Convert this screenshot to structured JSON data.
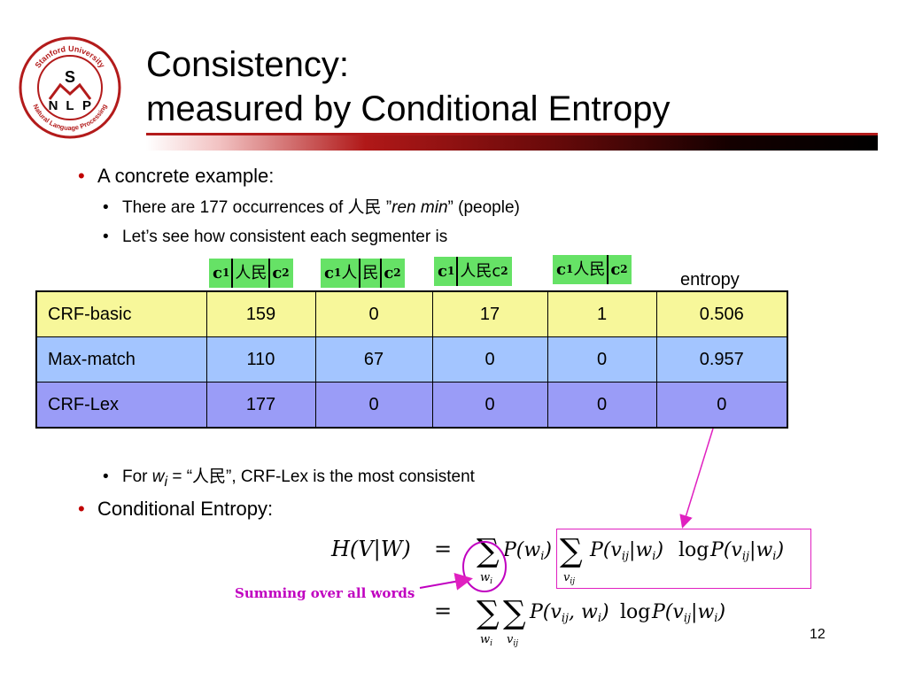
{
  "logo": {
    "ring_text_top": "Stanford University",
    "ring_text_bottom": "Natural Language Processing",
    "letter_s": "S",
    "letters_nlp": [
      "N",
      "L",
      "P"
    ]
  },
  "title": {
    "line1": "Consistency:",
    "line2": "measured by Conditional Entropy"
  },
  "bullets": {
    "b1": "A concrete example:",
    "s1_pre": "There are 177 occurrences of ",
    "s1_cjk": "人民",
    "s1_quote_open": " ”",
    "s1_italic": "ren min",
    "s1_post": "” (people)",
    "s2": "Let’s see how consistent each segmenter is",
    "s3_pre": "For ",
    "s3_w": "w",
    "s3_sub": "i",
    "s3_mid": " = “",
    "s3_cjk": "人民",
    "s3_post": "”, CRF-Lex is the most consistent",
    "b2": "Conditional Entropy:"
  },
  "segmentations": [
    {
      "c1": "c",
      "s1": "1",
      "chars": "人民",
      "c2": "c",
      "s2": "2",
      "bars": [
        true,
        true,
        false
      ]
    },
    {
      "c1": "c",
      "s1": "1",
      "chars": "人",
      "chars2": "民",
      "c2": "c",
      "s2": "2"
    },
    {
      "c1": "c",
      "s1": "1",
      "chars": "人民c",
      "s2": "2"
    },
    {
      "c1": "c",
      "s1": "1",
      "chars": "人民",
      "c2": "c",
      "s2": "2"
    }
  ],
  "entropy_label": "entropy",
  "table": {
    "rows": [
      {
        "name": "CRF-basic",
        "values": [
          "159",
          "0",
          "17",
          "1",
          "0.506"
        ]
      },
      {
        "name": "Max-match",
        "values": [
          "110",
          "67",
          "0",
          "0",
          "0.957"
        ]
      },
      {
        "name": "CRF-Lex",
        "values": [
          "177",
          "0",
          "0",
          "0",
          "0"
        ]
      }
    ]
  },
  "annotation": "Summing over all words",
  "formula": {
    "lhs": "H(V|W)",
    "eq": "=",
    "sum_sub_w": "w",
    "sum_sub_wi": "i",
    "sum_sub_v": "v",
    "sum_sub_vij": "ij",
    "log": "log"
  },
  "page_number": "12",
  "colors": {
    "accent": "#c00000",
    "magenta": "#c000c0",
    "green": "#66e266"
  }
}
